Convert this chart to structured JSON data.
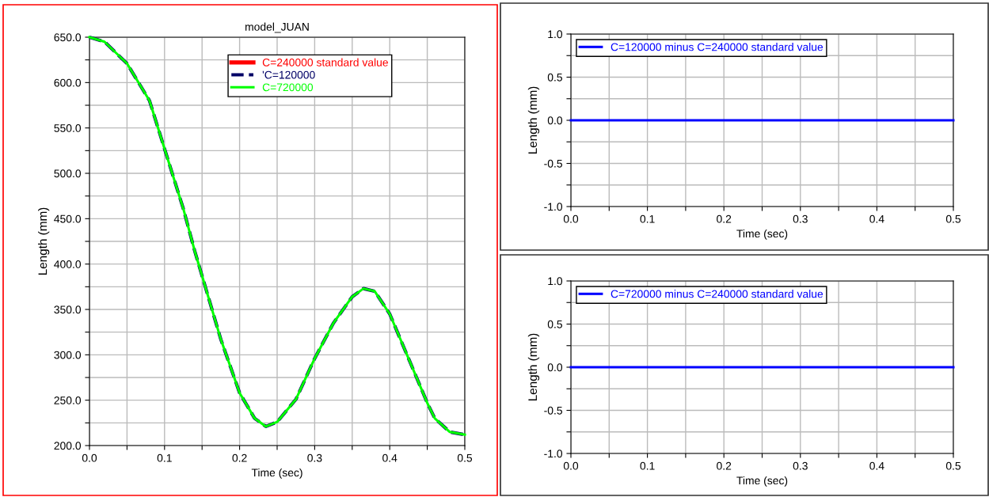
{
  "chart_data": [
    {
      "type": "line",
      "title": "model_JUAN",
      "xlabel": "Time (sec)",
      "ylabel": "Length (mm)",
      "legend": "top right",
      "grid": true,
      "xlim": [
        0,
        0.5
      ],
      "ylim": [
        200,
        650
      ],
      "xticks": [
        {
          "value": 0,
          "label": "0.0"
        },
        {
          "value": 0.05,
          "label": null
        },
        {
          "value": 0.1,
          "label": "0.1"
        },
        {
          "value": 0.15,
          "label": null
        },
        {
          "value": 0.2,
          "label": "0.2"
        },
        {
          "value": 0.25,
          "label": null
        },
        {
          "value": 0.3,
          "label": "0.3"
        },
        {
          "value": 0.35,
          "label": null
        },
        {
          "value": 0.4,
          "label": "0.4"
        },
        {
          "value": 0.45,
          "label": null
        },
        {
          "value": 0.5,
          "label": "0.5"
        }
      ],
      "yticks": [
        {
          "value": 200,
          "label": "200.0"
        },
        {
          "value": 225,
          "label": null
        },
        {
          "value": 250,
          "label": "250.0"
        },
        {
          "value": 275,
          "label": null
        },
        {
          "value": 300,
          "label": "300.0"
        },
        {
          "value": 325,
          "label": null
        },
        {
          "value": 350,
          "label": "350.0"
        },
        {
          "value": 375,
          "label": null
        },
        {
          "value": 400,
          "label": "400.0"
        },
        {
          "value": 425,
          "label": null
        },
        {
          "value": 450,
          "label": "450.0"
        },
        {
          "value": 475,
          "label": null
        },
        {
          "value": 500,
          "label": "500.0"
        },
        {
          "value": 525,
          "label": null
        },
        {
          "value": 550,
          "label": "550.0"
        },
        {
          "value": 575,
          "label": null
        },
        {
          "value": 600,
          "label": "600.0"
        },
        {
          "value": 625,
          "label": null
        },
        {
          "value": 650,
          "label": "650.0"
        }
      ],
      "x": [
        0,
        0.02,
        0.05,
        0.08,
        0.1,
        0.125,
        0.14,
        0.16,
        0.175,
        0.2,
        0.22,
        0.235,
        0.25,
        0.275,
        0.3,
        0.325,
        0.35,
        0.365,
        0.38,
        0.4,
        0.425,
        0.45,
        0.46,
        0.48,
        0.5
      ],
      "series": [
        {
          "name": "C=240000 standard value",
          "color": "#ff0000",
          "values": [
            null,
            null,
            null,
            null,
            null,
            null,
            null,
            null,
            null,
            null,
            null,
            null,
            null,
            null,
            null,
            null,
            null,
            null,
            null,
            null,
            null,
            null,
            null,
            null,
            null
          ]
        },
        {
          "name": "'C=120000",
          "color": "#000066",
          "line_style": "dashed",
          "values": [
            650,
            645,
            621,
            580,
            527,
            461,
            415,
            359,
            317,
            258,
            230,
            221,
            226,
            251,
            296,
            335,
            364,
            373,
            370,
            345,
            296,
            247,
            230,
            215,
            212
          ]
        },
        {
          "name": "C=720000",
          "color": "#00ff00",
          "values": [
            650,
            645,
            621,
            580,
            527,
            461,
            415,
            359,
            317,
            258,
            230,
            221,
            226,
            251,
            296,
            335,
            364,
            373,
            370,
            345,
            296,
            247,
            230,
            215,
            212
          ]
        }
      ]
    },
    {
      "type": "line",
      "xlabel": "Time (sec)",
      "ylabel": "Length (mm)",
      "legend": "top left",
      "grid": true,
      "xlim": [
        0,
        0.5
      ],
      "ylim": [
        -1,
        1
      ],
      "xticks": [
        {
          "value": 0,
          "label": "0.0"
        },
        {
          "value": 0.05,
          "label": null
        },
        {
          "value": 0.1,
          "label": "0.1"
        },
        {
          "value": 0.15,
          "label": null
        },
        {
          "value": 0.2,
          "label": "0.2"
        },
        {
          "value": 0.25,
          "label": null
        },
        {
          "value": 0.3,
          "label": "0.3"
        },
        {
          "value": 0.35,
          "label": null
        },
        {
          "value": 0.4,
          "label": "0.4"
        },
        {
          "value": 0.45,
          "label": null
        },
        {
          "value": 0.5,
          "label": "0.5"
        }
      ],
      "yticks": [
        {
          "value": -1,
          "label": "-1.0"
        },
        {
          "value": -0.75,
          "label": null
        },
        {
          "value": -0.5,
          "label": "-0.5"
        },
        {
          "value": -0.25,
          "label": null
        },
        {
          "value": 0,
          "label": "0.0"
        },
        {
          "value": 0.25,
          "label": null
        },
        {
          "value": 0.5,
          "label": "0.5"
        },
        {
          "value": 0.75,
          "label": null
        },
        {
          "value": 1,
          "label": "1.0"
        }
      ],
      "x": [
        0,
        0.5
      ],
      "series": [
        {
          "name": "C=120000 minus C=240000 standard value",
          "color": "#0000ff",
          "values": [
            0,
            0
          ]
        }
      ]
    },
    {
      "type": "line",
      "xlabel": "Time (sec)",
      "ylabel": "Length (mm)",
      "legend": "top left",
      "grid": true,
      "xlim": [
        0,
        0.5
      ],
      "ylim": [
        -1,
        1
      ],
      "xticks": [
        {
          "value": 0,
          "label": "0.0"
        },
        {
          "value": 0.05,
          "label": null
        },
        {
          "value": 0.1,
          "label": "0.1"
        },
        {
          "value": 0.15,
          "label": null
        },
        {
          "value": 0.2,
          "label": "0.2"
        },
        {
          "value": 0.25,
          "label": null
        },
        {
          "value": 0.3,
          "label": "0.3"
        },
        {
          "value": 0.35,
          "label": null
        },
        {
          "value": 0.4,
          "label": "0.4"
        },
        {
          "value": 0.45,
          "label": null
        },
        {
          "value": 0.5,
          "label": "0.5"
        }
      ],
      "yticks": [
        {
          "value": -1,
          "label": "-1.0"
        },
        {
          "value": -0.75,
          "label": null
        },
        {
          "value": -0.5,
          "label": "-0.5"
        },
        {
          "value": -0.25,
          "label": null
        },
        {
          "value": 0,
          "label": "0.0"
        },
        {
          "value": 0.25,
          "label": null
        },
        {
          "value": 0.5,
          "label": "0.5"
        },
        {
          "value": 0.75,
          "label": null
        },
        {
          "value": 1,
          "label": "1.0"
        }
      ],
      "x": [
        0,
        0.5
      ],
      "series": [
        {
          "name": "C=720000 minus C=240000 standard value",
          "color": "#0000ff",
          "values": [
            0,
            0
          ]
        }
      ]
    }
  ]
}
